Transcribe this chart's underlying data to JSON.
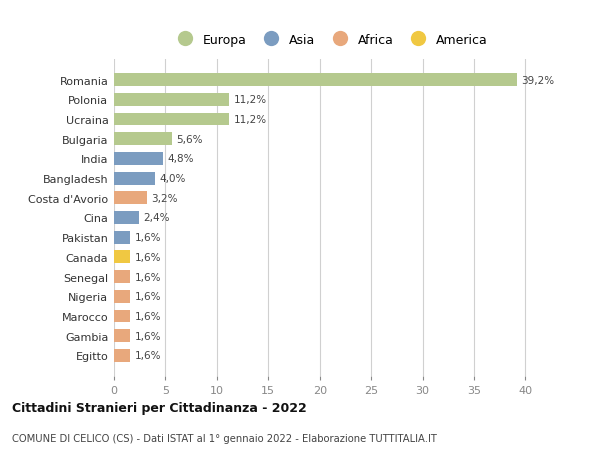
{
  "countries": [
    "Romania",
    "Polonia",
    "Ucraina",
    "Bulgaria",
    "India",
    "Bangladesh",
    "Costa d'Avorio",
    "Cina",
    "Pakistan",
    "Canada",
    "Senegal",
    "Nigeria",
    "Marocco",
    "Gambia",
    "Egitto"
  ],
  "values": [
    39.2,
    11.2,
    11.2,
    5.6,
    4.8,
    4.0,
    3.2,
    2.4,
    1.6,
    1.6,
    1.6,
    1.6,
    1.6,
    1.6,
    1.6
  ],
  "labels": [
    "39,2%",
    "11,2%",
    "11,2%",
    "5,6%",
    "4,8%",
    "4,0%",
    "3,2%",
    "2,4%",
    "1,6%",
    "1,6%",
    "1,6%",
    "1,6%",
    "1,6%",
    "1,6%",
    "1,6%"
  ],
  "continents": [
    "Europa",
    "Europa",
    "Europa",
    "Europa",
    "Asia",
    "Asia",
    "Africa",
    "Asia",
    "Asia",
    "America",
    "Africa",
    "Africa",
    "Africa",
    "Africa",
    "Africa"
  ],
  "continent_colors": {
    "Europa": "#b5c98e",
    "Asia": "#7b9cc0",
    "Africa": "#e8a87c",
    "America": "#f0c842"
  },
  "legend_order": [
    "Europa",
    "Asia",
    "Africa",
    "America"
  ],
  "title": "Cittadini Stranieri per Cittadinanza - 2022",
  "subtitle": "COMUNE DI CELICO (CS) - Dati ISTAT al 1° gennaio 2022 - Elaborazione TUTTITALIA.IT",
  "xlim": [
    0,
    42
  ],
  "xticks": [
    0,
    5,
    10,
    15,
    20,
    25,
    30,
    35,
    40
  ],
  "background_color": "#ffffff",
  "grid_color": "#d0d0d0"
}
